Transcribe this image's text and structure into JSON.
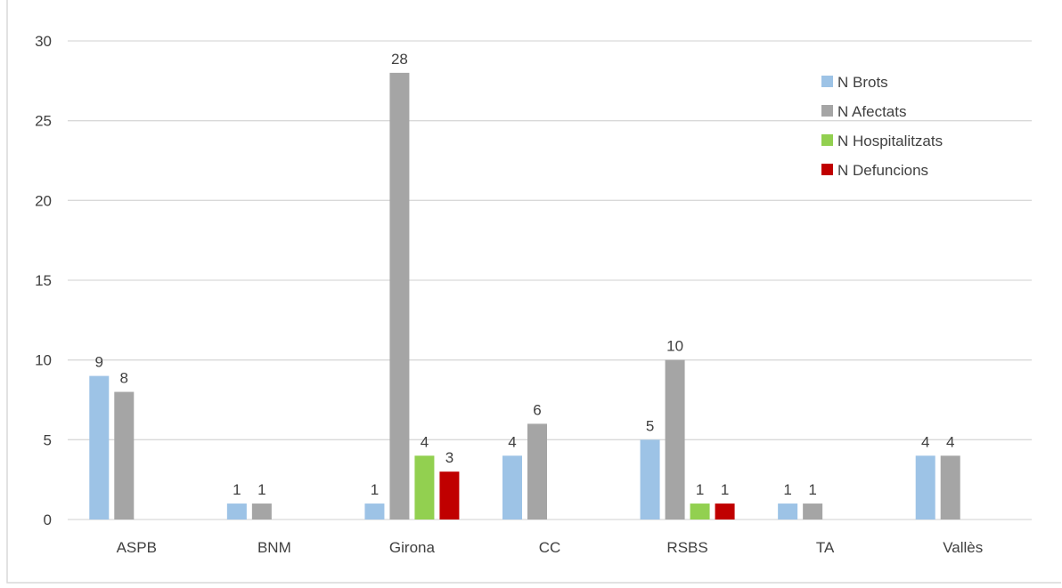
{
  "chart_data": {
    "type": "bar",
    "title": "",
    "xlabel": "",
    "ylabel": "",
    "ylim": [
      0,
      30
    ],
    "yticks": [
      0,
      5,
      10,
      15,
      20,
      25,
      30
    ],
    "grid": true,
    "legend_position": "top-right",
    "categories": [
      "ASPB",
      "BNM",
      "Girona",
      "CC",
      "RSBS",
      "TA",
      "Vallès"
    ],
    "series": [
      {
        "name": "N Brots",
        "color": "#9DC3E6",
        "values": [
          9,
          1,
          1,
          4,
          5,
          1,
          4
        ]
      },
      {
        "name": "N Afectats",
        "color": "#A5A5A5",
        "values": [
          8,
          1,
          28,
          6,
          10,
          1,
          4
        ]
      },
      {
        "name": "N Hospitalitzats",
        "color": "#92D050",
        "values": [
          0,
          0,
          4,
          0,
          1,
          0,
          0
        ]
      },
      {
        "name": "N Defuncions",
        "color": "#C00000",
        "values": [
          0,
          0,
          3,
          0,
          1,
          0,
          0
        ]
      }
    ]
  }
}
